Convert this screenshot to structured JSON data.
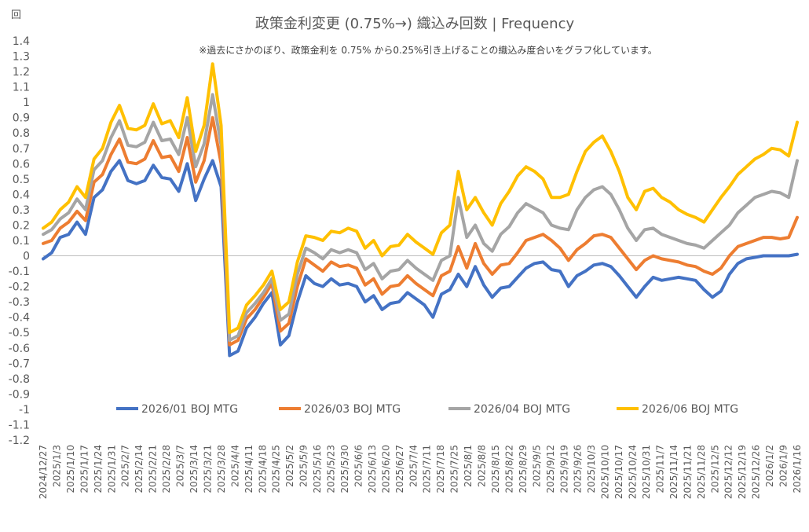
{
  "chart_data": {
    "type": "line",
    "title": "政策金利変更 (0.75%→) 織込み回数 | Frequency",
    "subtitle": "※過去にさかのぼり、政策金利を 0.75% から0.25%引き上げることの織込み度合いをグラフ化しています。",
    "ylabel": "回",
    "xlabel": "",
    "ylim": [
      -1.2,
      1.4
    ],
    "yticks": [
      -1.2,
      -1.1,
      -1,
      -0.9,
      -0.8,
      -0.7,
      -0.6,
      -0.5,
      -0.4,
      -0.3,
      -0.2,
      -0.1,
      0,
      0.1,
      0.2,
      0.3,
      0.4,
      0.5,
      0.6,
      0.7,
      0.8,
      0.9,
      1,
      1.1,
      1.2,
      1.3,
      1.4
    ],
    "xticks": [
      "2024/12/27",
      "2025/1/3",
      "2025/1/10",
      "2025/1/17",
      "2025/1/24",
      "2025/1/31",
      "2025/2/7",
      "2025/2/14",
      "2025/2/21",
      "2025/2/28",
      "2025/3/7",
      "2025/3/14",
      "2025/3/21",
      "2025/3/28",
      "2025/4/4",
      "2025/4/11",
      "2025/4/18",
      "2025/4/25",
      "2025/5/2",
      "2025/5/9",
      "2025/5/16",
      "2025/5/23",
      "2025/5/30",
      "2025/6/6",
      "2025/6/13",
      "2025/6/20",
      "2025/6/27",
      "2025/7/4",
      "2025/7/11",
      "2025/7/18",
      "2025/7/25",
      "2025/8/1",
      "2025/8/8",
      "2025/8/15",
      "2025/8/22",
      "2025/8/29",
      "2025/9/5",
      "2025/9/12",
      "2025/9/19",
      "2025/9/26",
      "2025/10/3",
      "2025/10/10",
      "2025/10/17",
      "2025/10/24",
      "2025/10/31",
      "2025/11/7",
      "2025/11/14",
      "2025/11/21",
      "2025/11/28",
      "2025/12/5",
      "2025/12/12",
      "2025/12/19",
      "2025/12/26",
      "2026/1/2",
      "2026/1/9",
      "2026/1/16"
    ],
    "grid": false,
    "legend": "bottom",
    "series": [
      {
        "name": "2026/01 BOJ MTG",
        "color": "#4472c4",
        "values": [
          -0.02,
          0.02,
          0.12,
          0.14,
          0.22,
          0.14,
          0.38,
          0.43,
          0.55,
          0.62,
          0.49,
          0.47,
          0.49,
          0.59,
          0.51,
          0.5,
          0.42,
          0.6,
          0.36,
          0.5,
          0.62,
          0.45,
          -0.65,
          -0.62,
          -0.47,
          -0.4,
          -0.31,
          -0.24,
          -0.58,
          -0.52,
          -0.3,
          -0.13,
          -0.18,
          -0.2,
          -0.15,
          -0.19,
          -0.18,
          -0.2,
          -0.3,
          -0.26,
          -0.35,
          -0.31,
          -0.3,
          -0.24,
          -0.28,
          -0.32,
          -0.4,
          -0.25,
          -0.22,
          -0.12,
          -0.2,
          -0.07,
          -0.19,
          -0.27,
          -0.21,
          -0.2,
          -0.14,
          -0.08,
          -0.05,
          -0.04,
          -0.09,
          -0.1,
          -0.2,
          -0.13,
          -0.1,
          -0.06,
          -0.05,
          -0.07,
          -0.13,
          -0.2,
          -0.27,
          -0.2,
          -0.14,
          -0.16,
          -0.15,
          -0.14,
          -0.15,
          -0.16,
          -0.22,
          -0.27,
          -0.23,
          -0.12,
          -0.05,
          -0.02,
          -0.01,
          0.0,
          0.0,
          0.0,
          0.0,
          0.01
        ]
      },
      {
        "name": "2026/03 BOJ MTG",
        "color": "#ed7d31",
        "values": [
          0.08,
          0.1,
          0.18,
          0.22,
          0.29,
          0.23,
          0.48,
          0.53,
          0.66,
          0.76,
          0.61,
          0.6,
          0.63,
          0.75,
          0.64,
          0.65,
          0.55,
          0.77,
          0.48,
          0.62,
          0.9,
          0.6,
          -0.58,
          -0.55,
          -0.41,
          -0.35,
          -0.27,
          -0.18,
          -0.49,
          -0.44,
          -0.2,
          -0.02,
          -0.06,
          -0.1,
          -0.04,
          -0.07,
          -0.06,
          -0.08,
          -0.19,
          -0.15,
          -0.25,
          -0.2,
          -0.19,
          -0.13,
          -0.18,
          -0.22,
          -0.26,
          -0.13,
          -0.1,
          0.06,
          -0.08,
          0.08,
          -0.05,
          -0.12,
          -0.06,
          -0.05,
          0.02,
          0.1,
          0.12,
          0.14,
          0.1,
          0.05,
          -0.03,
          0.04,
          0.08,
          0.13,
          0.14,
          0.12,
          0.05,
          -0.02,
          -0.09,
          -0.03,
          0.0,
          -0.02,
          -0.03,
          -0.04,
          -0.06,
          -0.07,
          -0.1,
          -0.12,
          -0.08,
          0.0,
          0.06,
          0.08,
          0.1,
          0.12,
          0.12,
          0.11,
          0.12,
          0.25
        ]
      },
      {
        "name": "2026/04 BOJ MTG",
        "color": "#a5a5a5",
        "values": [
          0.14,
          0.17,
          0.24,
          0.28,
          0.37,
          0.3,
          0.56,
          0.62,
          0.77,
          0.88,
          0.72,
          0.71,
          0.74,
          0.87,
          0.75,
          0.76,
          0.66,
          0.9,
          0.58,
          0.73,
          1.05,
          0.72,
          -0.55,
          -0.52,
          -0.37,
          -0.31,
          -0.24,
          -0.15,
          -0.42,
          -0.38,
          -0.12,
          0.05,
          0.02,
          -0.02,
          0.04,
          0.02,
          0.04,
          0.02,
          -0.09,
          -0.05,
          -0.15,
          -0.1,
          -0.09,
          -0.03,
          -0.08,
          -0.12,
          -0.16,
          -0.03,
          0.0,
          0.38,
          0.12,
          0.2,
          0.08,
          0.03,
          0.14,
          0.19,
          0.28,
          0.34,
          0.31,
          0.28,
          0.2,
          0.18,
          0.17,
          0.3,
          0.38,
          0.43,
          0.45,
          0.4,
          0.3,
          0.18,
          0.1,
          0.17,
          0.18,
          0.14,
          0.12,
          0.1,
          0.08,
          0.07,
          0.05,
          0.1,
          0.15,
          0.2,
          0.28,
          0.33,
          0.38,
          0.4,
          0.42,
          0.41,
          0.38,
          0.62
        ]
      },
      {
        "name": "2026/06 BOJ MTG",
        "color": "#ffc000",
        "values": [
          0.18,
          0.22,
          0.3,
          0.35,
          0.45,
          0.38,
          0.63,
          0.7,
          0.87,
          0.98,
          0.83,
          0.82,
          0.85,
          0.99,
          0.86,
          0.88,
          0.77,
          1.03,
          0.68,
          0.85,
          1.25,
          0.85,
          -0.5,
          -0.47,
          -0.32,
          -0.26,
          -0.19,
          -0.1,
          -0.35,
          -0.3,
          -0.04,
          0.13,
          0.12,
          0.1,
          0.16,
          0.15,
          0.18,
          0.16,
          0.05,
          0.1,
          0.0,
          0.06,
          0.07,
          0.14,
          0.09,
          0.05,
          0.01,
          0.15,
          0.2,
          0.55,
          0.3,
          0.38,
          0.28,
          0.2,
          0.34,
          0.42,
          0.52,
          0.58,
          0.55,
          0.5,
          0.38,
          0.38,
          0.4,
          0.55,
          0.68,
          0.74,
          0.78,
          0.68,
          0.55,
          0.38,
          0.3,
          0.42,
          0.44,
          0.38,
          0.35,
          0.3,
          0.27,
          0.25,
          0.22,
          0.3,
          0.38,
          0.45,
          0.53,
          0.58,
          0.63,
          0.66,
          0.7,
          0.69,
          0.65,
          0.87
        ]
      }
    ]
  }
}
